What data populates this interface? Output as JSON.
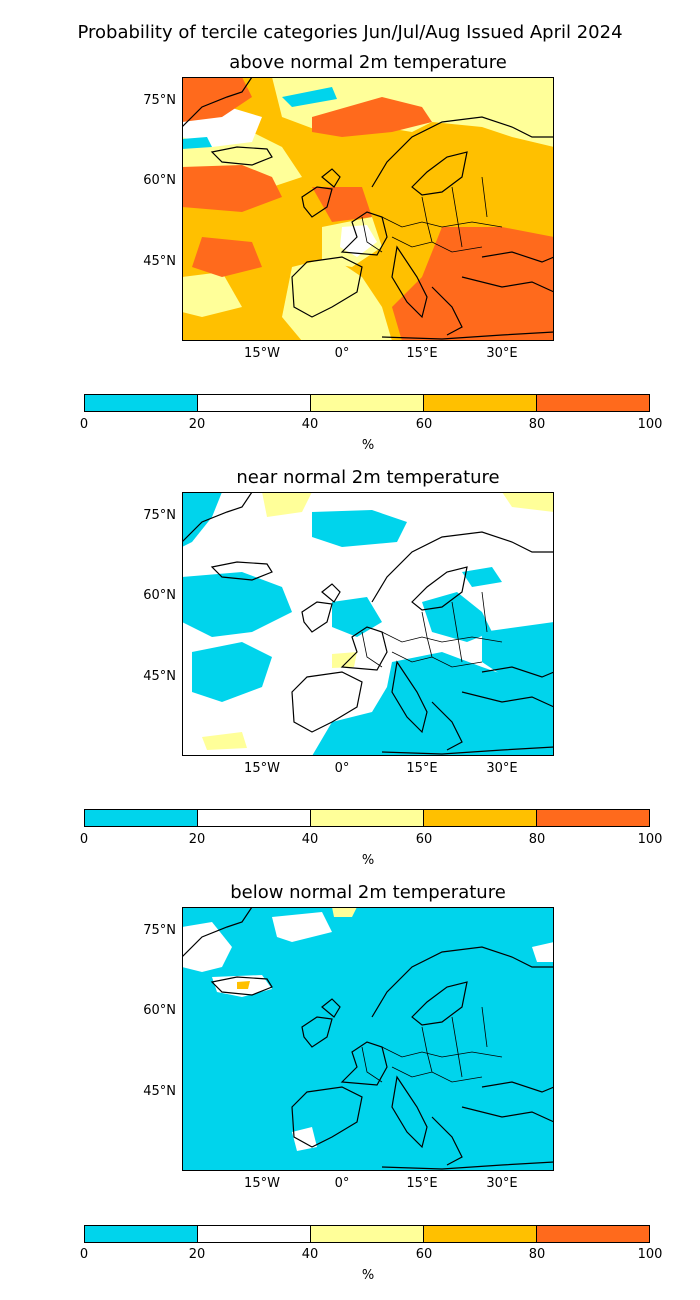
{
  "title": "Probability of tercile categories Jun/Jul/Aug Issued April 2024",
  "colors": {
    "c0_20": "#00d4ec",
    "c20_40": "#ffffff",
    "c40_60": "#ffff99",
    "c60_80": "#ffc000",
    "c80_100": "#ff6a1c"
  },
  "lat_ticks": [
    "75°N",
    "60°N",
    "45°N"
  ],
  "lon_ticks": [
    "15°W",
    "0°",
    "15°E",
    "30°E"
  ],
  "colorbar": {
    "ticks": [
      "0",
      "20",
      "40",
      "60",
      "80",
      "100"
    ],
    "unit": "%"
  },
  "panels": [
    {
      "title": "above normal 2m temperature"
    },
    {
      "title": "near normal 2m temperature"
    },
    {
      "title": "below normal 2m temperature"
    }
  ]
}
